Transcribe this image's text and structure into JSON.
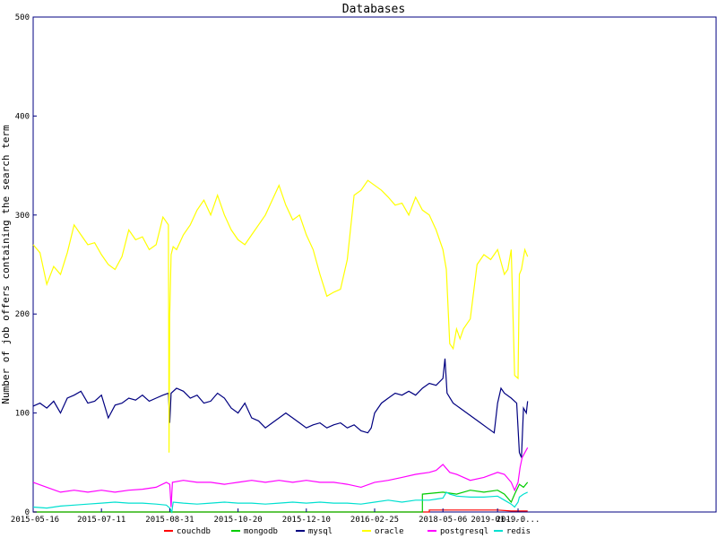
{
  "chart_data": {
    "type": "line",
    "title": "Databases",
    "xlabel": "",
    "ylabel": "Number of job offers containing the search term",
    "ylim": [
      0,
      500
    ],
    "yticks": [
      0,
      100,
      200,
      300,
      400,
      500
    ],
    "x_tick_labels": [
      "2015-05-16",
      "2015-07-11",
      "2015-08-31",
      "2015-10-20",
      "2015-12-10",
      "2016-02-25",
      "2018-05-06",
      "2019-01-...",
      "2019-0..."
    ],
    "grid": false,
    "legend_position": "bottom",
    "x_index_range": [
      0,
      1000
    ],
    "tick_index": [
      0,
      100,
      200,
      300,
      400,
      500,
      600,
      680,
      710
    ],
    "series": [
      {
        "name": "couchdb",
        "color": "#ff0000",
        "points": [
          [
            0,
            0
          ],
          [
            100,
            0
          ],
          [
            200,
            0
          ],
          [
            300,
            0
          ],
          [
            400,
            0
          ],
          [
            500,
            0
          ],
          [
            580,
            0
          ],
          [
            580,
            2
          ],
          [
            640,
            2
          ],
          [
            680,
            2
          ],
          [
            700,
            1
          ],
          [
            724,
            1
          ]
        ]
      },
      {
        "name": "mongodb",
        "color": "#00cc00",
        "points": [
          [
            0,
            0
          ],
          [
            200,
            0
          ],
          [
            400,
            0
          ],
          [
            500,
            0
          ],
          [
            570,
            0
          ],
          [
            570,
            18
          ],
          [
            600,
            20
          ],
          [
            620,
            18
          ],
          [
            640,
            22
          ],
          [
            660,
            20
          ],
          [
            680,
            22
          ],
          [
            690,
            18
          ],
          [
            700,
            10
          ],
          [
            705,
            18
          ],
          [
            712,
            28
          ],
          [
            718,
            25
          ],
          [
            724,
            30
          ]
        ]
      },
      {
        "name": "mysql",
        "color": "#000080",
        "points": [
          [
            0,
            107
          ],
          [
            10,
            110
          ],
          [
            20,
            105
          ],
          [
            30,
            112
          ],
          [
            40,
            100
          ],
          [
            50,
            115
          ],
          [
            60,
            118
          ],
          [
            70,
            122
          ],
          [
            80,
            110
          ],
          [
            90,
            112
          ],
          [
            100,
            118
          ],
          [
            110,
            95
          ],
          [
            120,
            108
          ],
          [
            130,
            110
          ],
          [
            140,
            115
          ],
          [
            150,
            113
          ],
          [
            160,
            118
          ],
          [
            170,
            112
          ],
          [
            180,
            115
          ],
          [
            190,
            118
          ],
          [
            198,
            120
          ],
          [
            200,
            90
          ],
          [
            202,
            120
          ],
          [
            210,
            125
          ],
          [
            220,
            122
          ],
          [
            230,
            115
          ],
          [
            240,
            118
          ],
          [
            250,
            110
          ],
          [
            260,
            112
          ],
          [
            270,
            120
          ],
          [
            280,
            115
          ],
          [
            290,
            105
          ],
          [
            300,
            100
          ],
          [
            310,
            110
          ],
          [
            320,
            95
          ],
          [
            330,
            92
          ],
          [
            340,
            85
          ],
          [
            350,
            90
          ],
          [
            360,
            95
          ],
          [
            370,
            100
          ],
          [
            380,
            95
          ],
          [
            390,
            90
          ],
          [
            400,
            85
          ],
          [
            410,
            88
          ],
          [
            420,
            90
          ],
          [
            430,
            85
          ],
          [
            440,
            88
          ],
          [
            450,
            90
          ],
          [
            460,
            85
          ],
          [
            470,
            88
          ],
          [
            480,
            82
          ],
          [
            490,
            80
          ],
          [
            495,
            85
          ],
          [
            500,
            100
          ],
          [
            510,
            110
          ],
          [
            520,
            115
          ],
          [
            530,
            120
          ],
          [
            540,
            118
          ],
          [
            550,
            122
          ],
          [
            560,
            118
          ],
          [
            570,
            125
          ],
          [
            580,
            130
          ],
          [
            590,
            128
          ],
          [
            600,
            135
          ],
          [
            603,
            155
          ],
          [
            606,
            120
          ],
          [
            615,
            110
          ],
          [
            625,
            105
          ],
          [
            635,
            100
          ],
          [
            645,
            95
          ],
          [
            655,
            90
          ],
          [
            665,
            85
          ],
          [
            675,
            80
          ],
          [
            680,
            110
          ],
          [
            685,
            125
          ],
          [
            690,
            120
          ],
          [
            700,
            115
          ],
          [
            708,
            110
          ],
          [
            712,
            60
          ],
          [
            715,
            55
          ],
          [
            718,
            105
          ],
          [
            722,
            100
          ],
          [
            724,
            112
          ]
        ]
      },
      {
        "name": "oracle",
        "color": "#ffff00",
        "points": [
          [
            0,
            270
          ],
          [
            10,
            262
          ],
          [
            20,
            230
          ],
          [
            30,
            248
          ],
          [
            40,
            240
          ],
          [
            50,
            262
          ],
          [
            60,
            290
          ],
          [
            70,
            280
          ],
          [
            80,
            270
          ],
          [
            90,
            272
          ],
          [
            100,
            260
          ],
          [
            110,
            250
          ],
          [
            120,
            245
          ],
          [
            130,
            258
          ],
          [
            140,
            285
          ],
          [
            150,
            275
          ],
          [
            160,
            278
          ],
          [
            170,
            265
          ],
          [
            180,
            270
          ],
          [
            190,
            298
          ],
          [
            198,
            290
          ],
          [
            199,
            60
          ],
          [
            200,
            200
          ],
          [
            202,
            260
          ],
          [
            205,
            268
          ],
          [
            210,
            265
          ],
          [
            220,
            280
          ],
          [
            230,
            290
          ],
          [
            240,
            305
          ],
          [
            250,
            315
          ],
          [
            260,
            300
          ],
          [
            270,
            320
          ],
          [
            280,
            300
          ],
          [
            290,
            285
          ],
          [
            300,
            275
          ],
          [
            310,
            270
          ],
          [
            320,
            280
          ],
          [
            330,
            290
          ],
          [
            340,
            300
          ],
          [
            350,
            315
          ],
          [
            360,
            330
          ],
          [
            370,
            310
          ],
          [
            380,
            295
          ],
          [
            390,
            300
          ],
          [
            400,
            280
          ],
          [
            410,
            265
          ],
          [
            420,
            240
          ],
          [
            430,
            218
          ],
          [
            440,
            222
          ],
          [
            450,
            225
          ],
          [
            460,
            255
          ],
          [
            470,
            320
          ],
          [
            480,
            325
          ],
          [
            490,
            335
          ],
          [
            500,
            330
          ],
          [
            510,
            325
          ],
          [
            520,
            318
          ],
          [
            530,
            310
          ],
          [
            540,
            312
          ],
          [
            550,
            300
          ],
          [
            560,
            318
          ],
          [
            570,
            305
          ],
          [
            580,
            300
          ],
          [
            590,
            285
          ],
          [
            600,
            265
          ],
          [
            605,
            245
          ],
          [
            610,
            170
          ],
          [
            615,
            165
          ],
          [
            620,
            185
          ],
          [
            625,
            175
          ],
          [
            630,
            185
          ],
          [
            640,
            195
          ],
          [
            650,
            250
          ],
          [
            660,
            260
          ],
          [
            670,
            255
          ],
          [
            680,
            265
          ],
          [
            690,
            240
          ],
          [
            695,
            245
          ],
          [
            700,
            265
          ],
          [
            705,
            138
          ],
          [
            710,
            135
          ],
          [
            712,
            240
          ],
          [
            715,
            245
          ],
          [
            720,
            265
          ],
          [
            724,
            258
          ]
        ]
      },
      {
        "name": "postgresql",
        "color": "#ff00ff",
        "points": [
          [
            0,
            30
          ],
          [
            20,
            25
          ],
          [
            40,
            20
          ],
          [
            60,
            22
          ],
          [
            80,
            20
          ],
          [
            100,
            22
          ],
          [
            120,
            20
          ],
          [
            140,
            22
          ],
          [
            160,
            23
          ],
          [
            180,
            25
          ],
          [
            195,
            30
          ],
          [
            200,
            28
          ],
          [
            202,
            5
          ],
          [
            204,
            30
          ],
          [
            220,
            32
          ],
          [
            240,
            30
          ],
          [
            260,
            30
          ],
          [
            280,
            28
          ],
          [
            300,
            30
          ],
          [
            320,
            32
          ],
          [
            340,
            30
          ],
          [
            360,
            32
          ],
          [
            380,
            30
          ],
          [
            400,
            32
          ],
          [
            420,
            30
          ],
          [
            440,
            30
          ],
          [
            460,
            28
          ],
          [
            480,
            25
          ],
          [
            500,
            30
          ],
          [
            520,
            32
          ],
          [
            540,
            35
          ],
          [
            560,
            38
          ],
          [
            580,
            40
          ],
          [
            590,
            42
          ],
          [
            600,
            48
          ],
          [
            610,
            40
          ],
          [
            620,
            38
          ],
          [
            640,
            32
          ],
          [
            660,
            35
          ],
          [
            680,
            40
          ],
          [
            690,
            38
          ],
          [
            700,
            30
          ],
          [
            705,
            22
          ],
          [
            710,
            30
          ],
          [
            713,
            45
          ],
          [
            716,
            55
          ],
          [
            720,
            60
          ],
          [
            724,
            65
          ]
        ]
      },
      {
        "name": "redis",
        "color": "#00e0d0",
        "points": [
          [
            0,
            5
          ],
          [
            20,
            4
          ],
          [
            40,
            6
          ],
          [
            60,
            7
          ],
          [
            80,
            8
          ],
          [
            100,
            9
          ],
          [
            120,
            10
          ],
          [
            140,
            9
          ],
          [
            160,
            9
          ],
          [
            180,
            8
          ],
          [
            195,
            7
          ],
          [
            200,
            4
          ],
          [
            203,
            0
          ],
          [
            205,
            10
          ],
          [
            220,
            9
          ],
          [
            240,
            8
          ],
          [
            260,
            9
          ],
          [
            280,
            10
          ],
          [
            300,
            9
          ],
          [
            320,
            9
          ],
          [
            340,
            8
          ],
          [
            360,
            9
          ],
          [
            380,
            10
          ],
          [
            400,
            9
          ],
          [
            420,
            10
          ],
          [
            440,
            9
          ],
          [
            460,
            9
          ],
          [
            480,
            8
          ],
          [
            500,
            10
          ],
          [
            520,
            12
          ],
          [
            540,
            10
          ],
          [
            560,
            12
          ],
          [
            580,
            12
          ],
          [
            590,
            13
          ],
          [
            600,
            14
          ],
          [
            605,
            20
          ],
          [
            610,
            18
          ],
          [
            620,
            16
          ],
          [
            640,
            15
          ],
          [
            660,
            15
          ],
          [
            680,
            16
          ],
          [
            690,
            12
          ],
          [
            700,
            8
          ],
          [
            705,
            5
          ],
          [
            710,
            10
          ],
          [
            712,
            15
          ],
          [
            718,
            18
          ],
          [
            724,
            20
          ]
        ]
      }
    ]
  }
}
